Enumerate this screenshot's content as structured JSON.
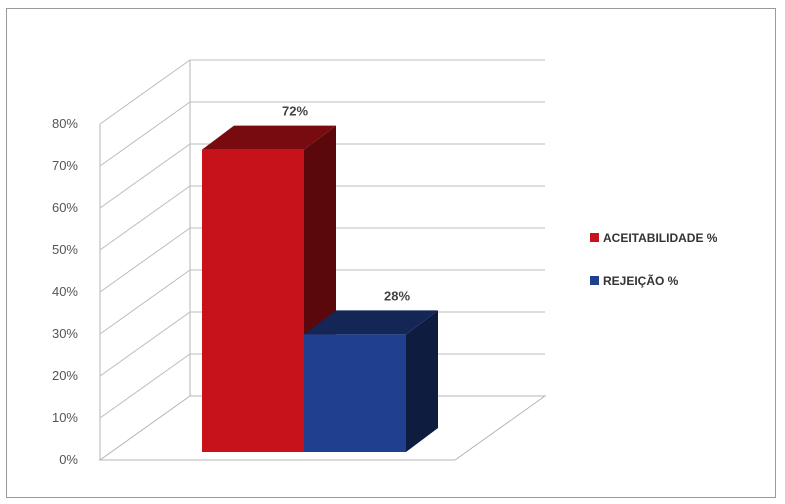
{
  "chart_data": {
    "type": "bar",
    "categories": [
      "ACEITABILIDADE %",
      "REJEIÇÃO %"
    ],
    "values": [
      72,
      28
    ],
    "data_labels": [
      "72%",
      "28%"
    ],
    "colors": [
      "#c8121b",
      "#1f3f8f"
    ],
    "yticks": [
      "0%",
      "10%",
      "20%",
      "30%",
      "40%",
      "50%",
      "60%",
      "70%",
      "80%"
    ],
    "ylim": [
      0,
      80
    ],
    "grid": true,
    "three_d": true,
    "legend_position": "right",
    "title": "",
    "xlabel": "",
    "ylabel": ""
  }
}
